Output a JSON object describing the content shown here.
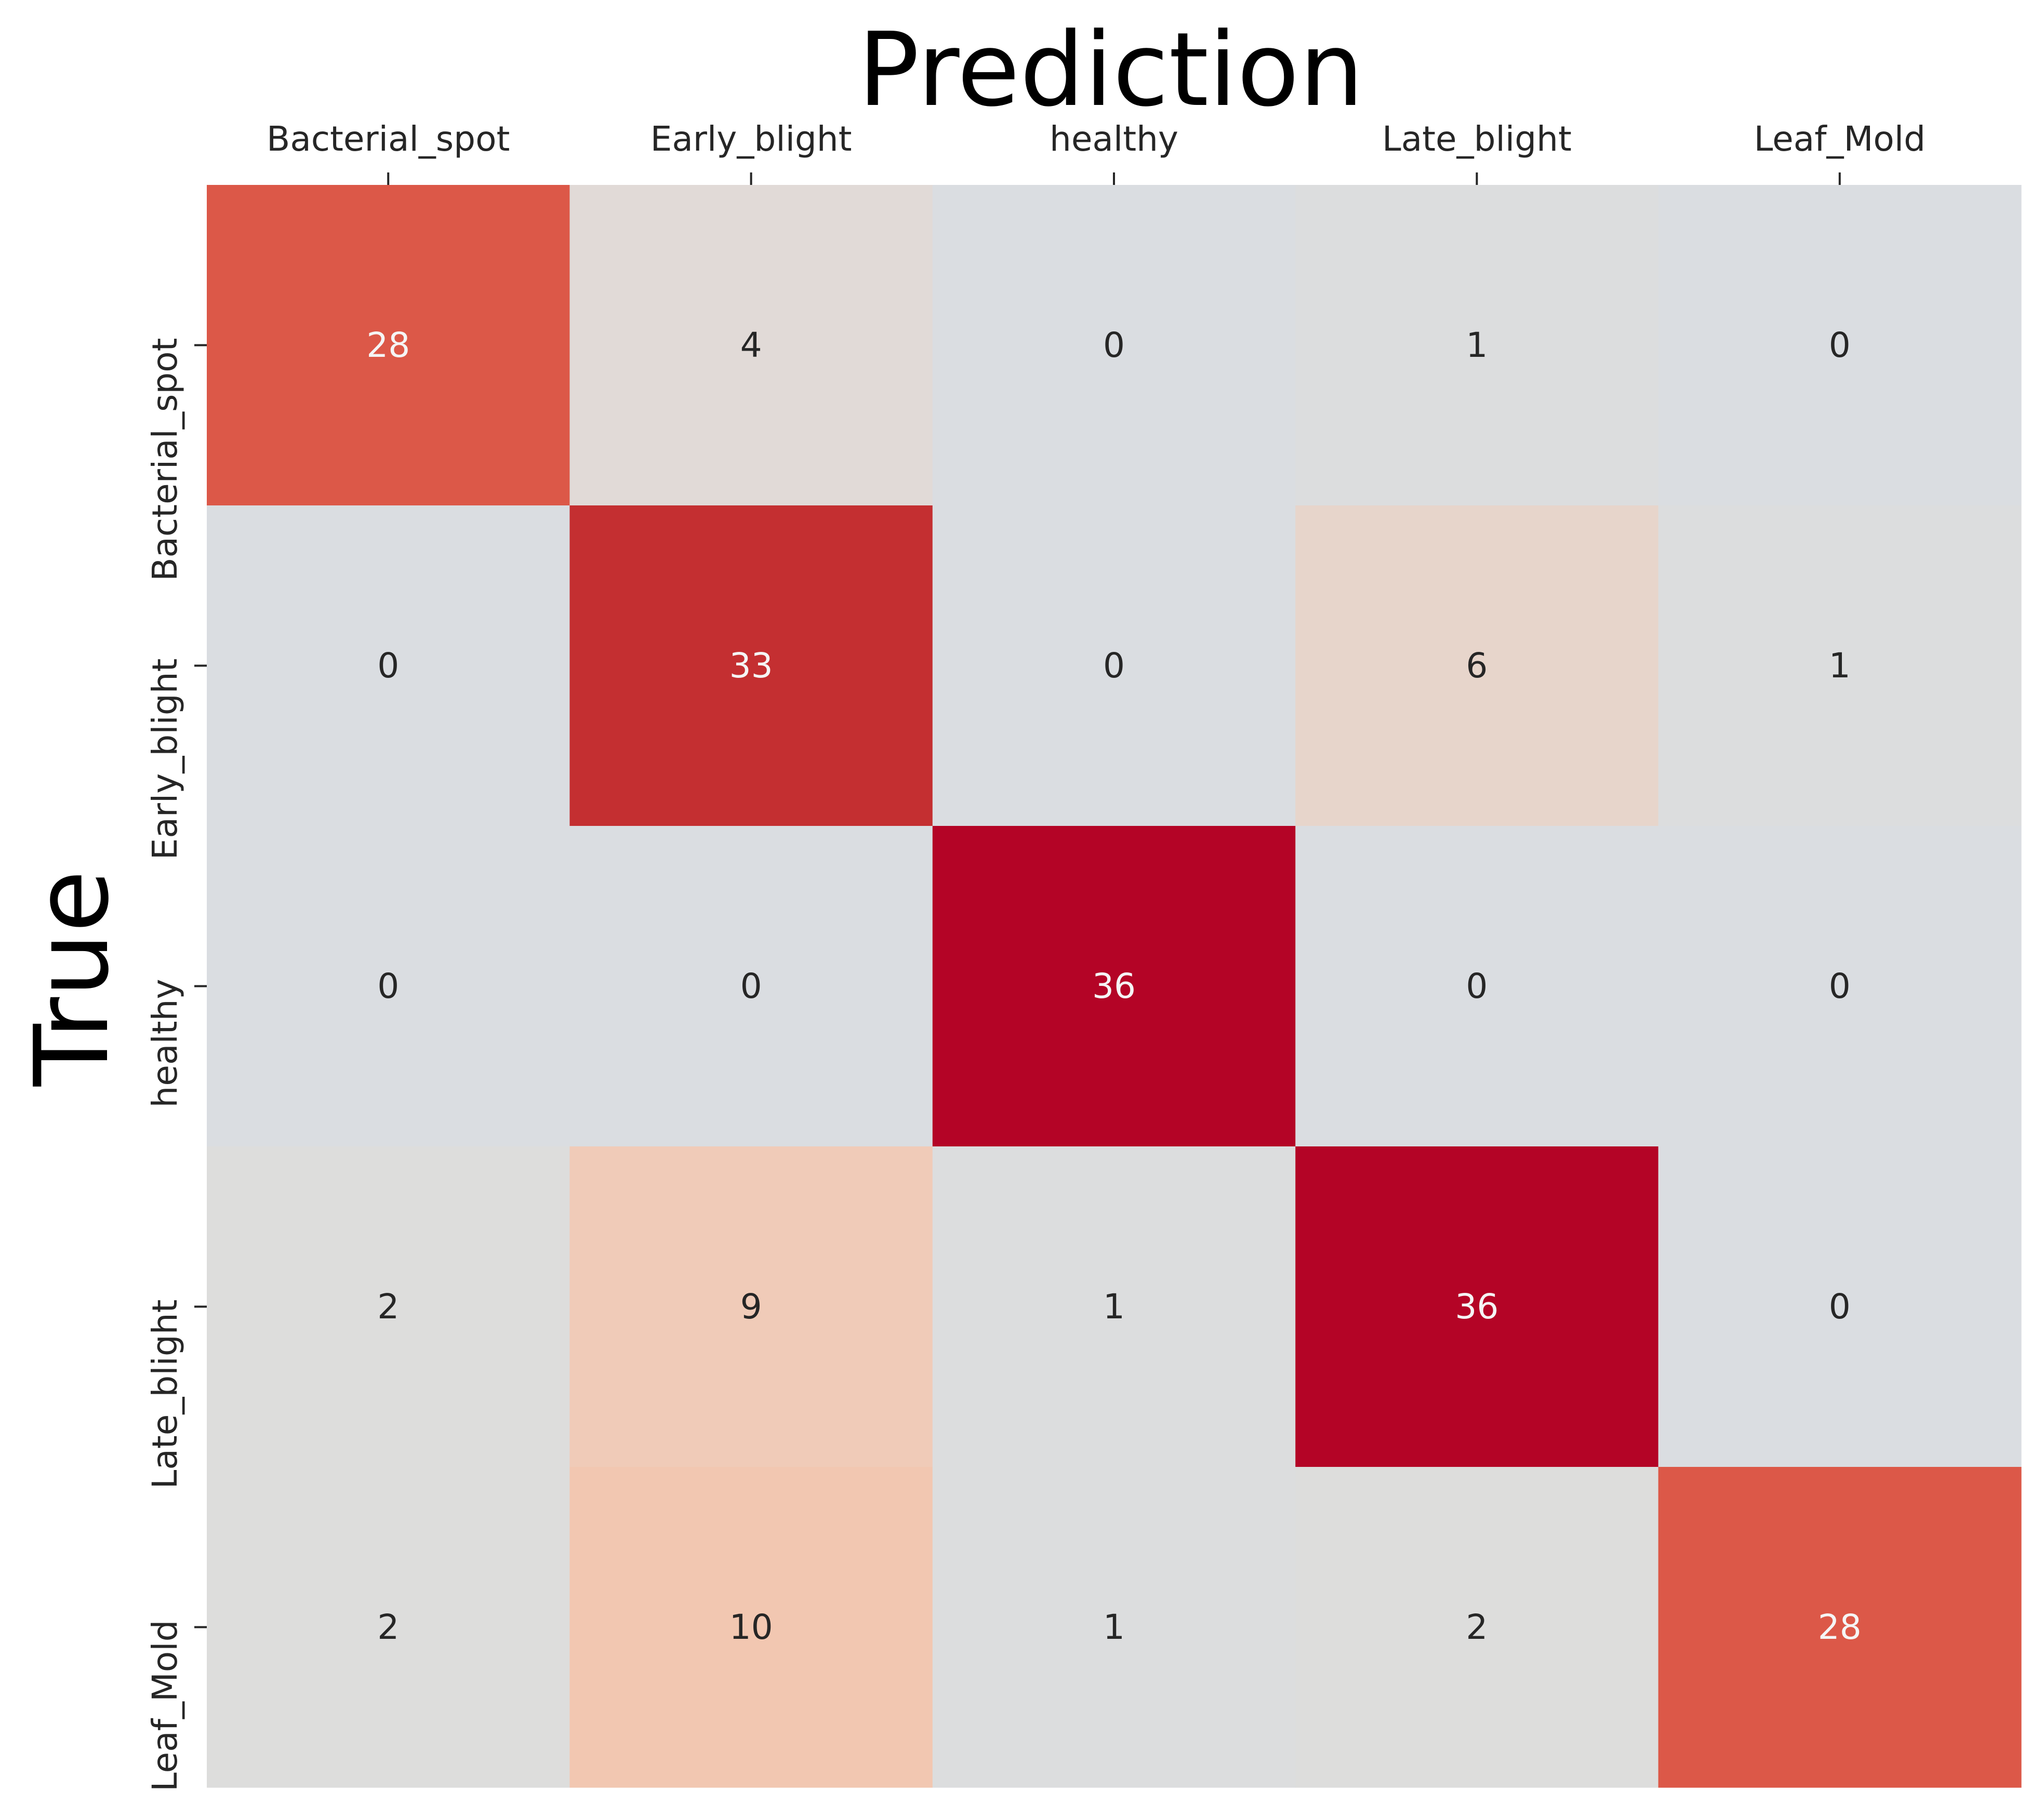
{
  "chart_data": {
    "type": "heatmap",
    "title": "",
    "xlabel": "Prediction",
    "ylabel": "True",
    "x_categories": [
      "Bacterial_spot",
      "Early_blight",
      "healthy",
      "Late_blight",
      "Leaf_Mold"
    ],
    "y_categories": [
      "Bacterial_spot",
      "Early_blight",
      "healthy",
      "Late_blight",
      "Leaf_Mold"
    ],
    "values": [
      [
        28,
        4,
        0,
        1,
        0
      ],
      [
        0,
        33,
        0,
        6,
        1
      ],
      [
        0,
        0,
        36,
        0,
        0
      ],
      [
        2,
        9,
        1,
        36,
        0
      ],
      [
        2,
        10,
        1,
        2,
        28
      ]
    ],
    "x_axis_position": "top",
    "colorbar": false,
    "grid": false,
    "colors": {
      "low": "#dadde1",
      "high": "#b40426",
      "annotation_light": "#f5f5f5",
      "annotation_dark": "#262626",
      "label": "#000000"
    }
  }
}
